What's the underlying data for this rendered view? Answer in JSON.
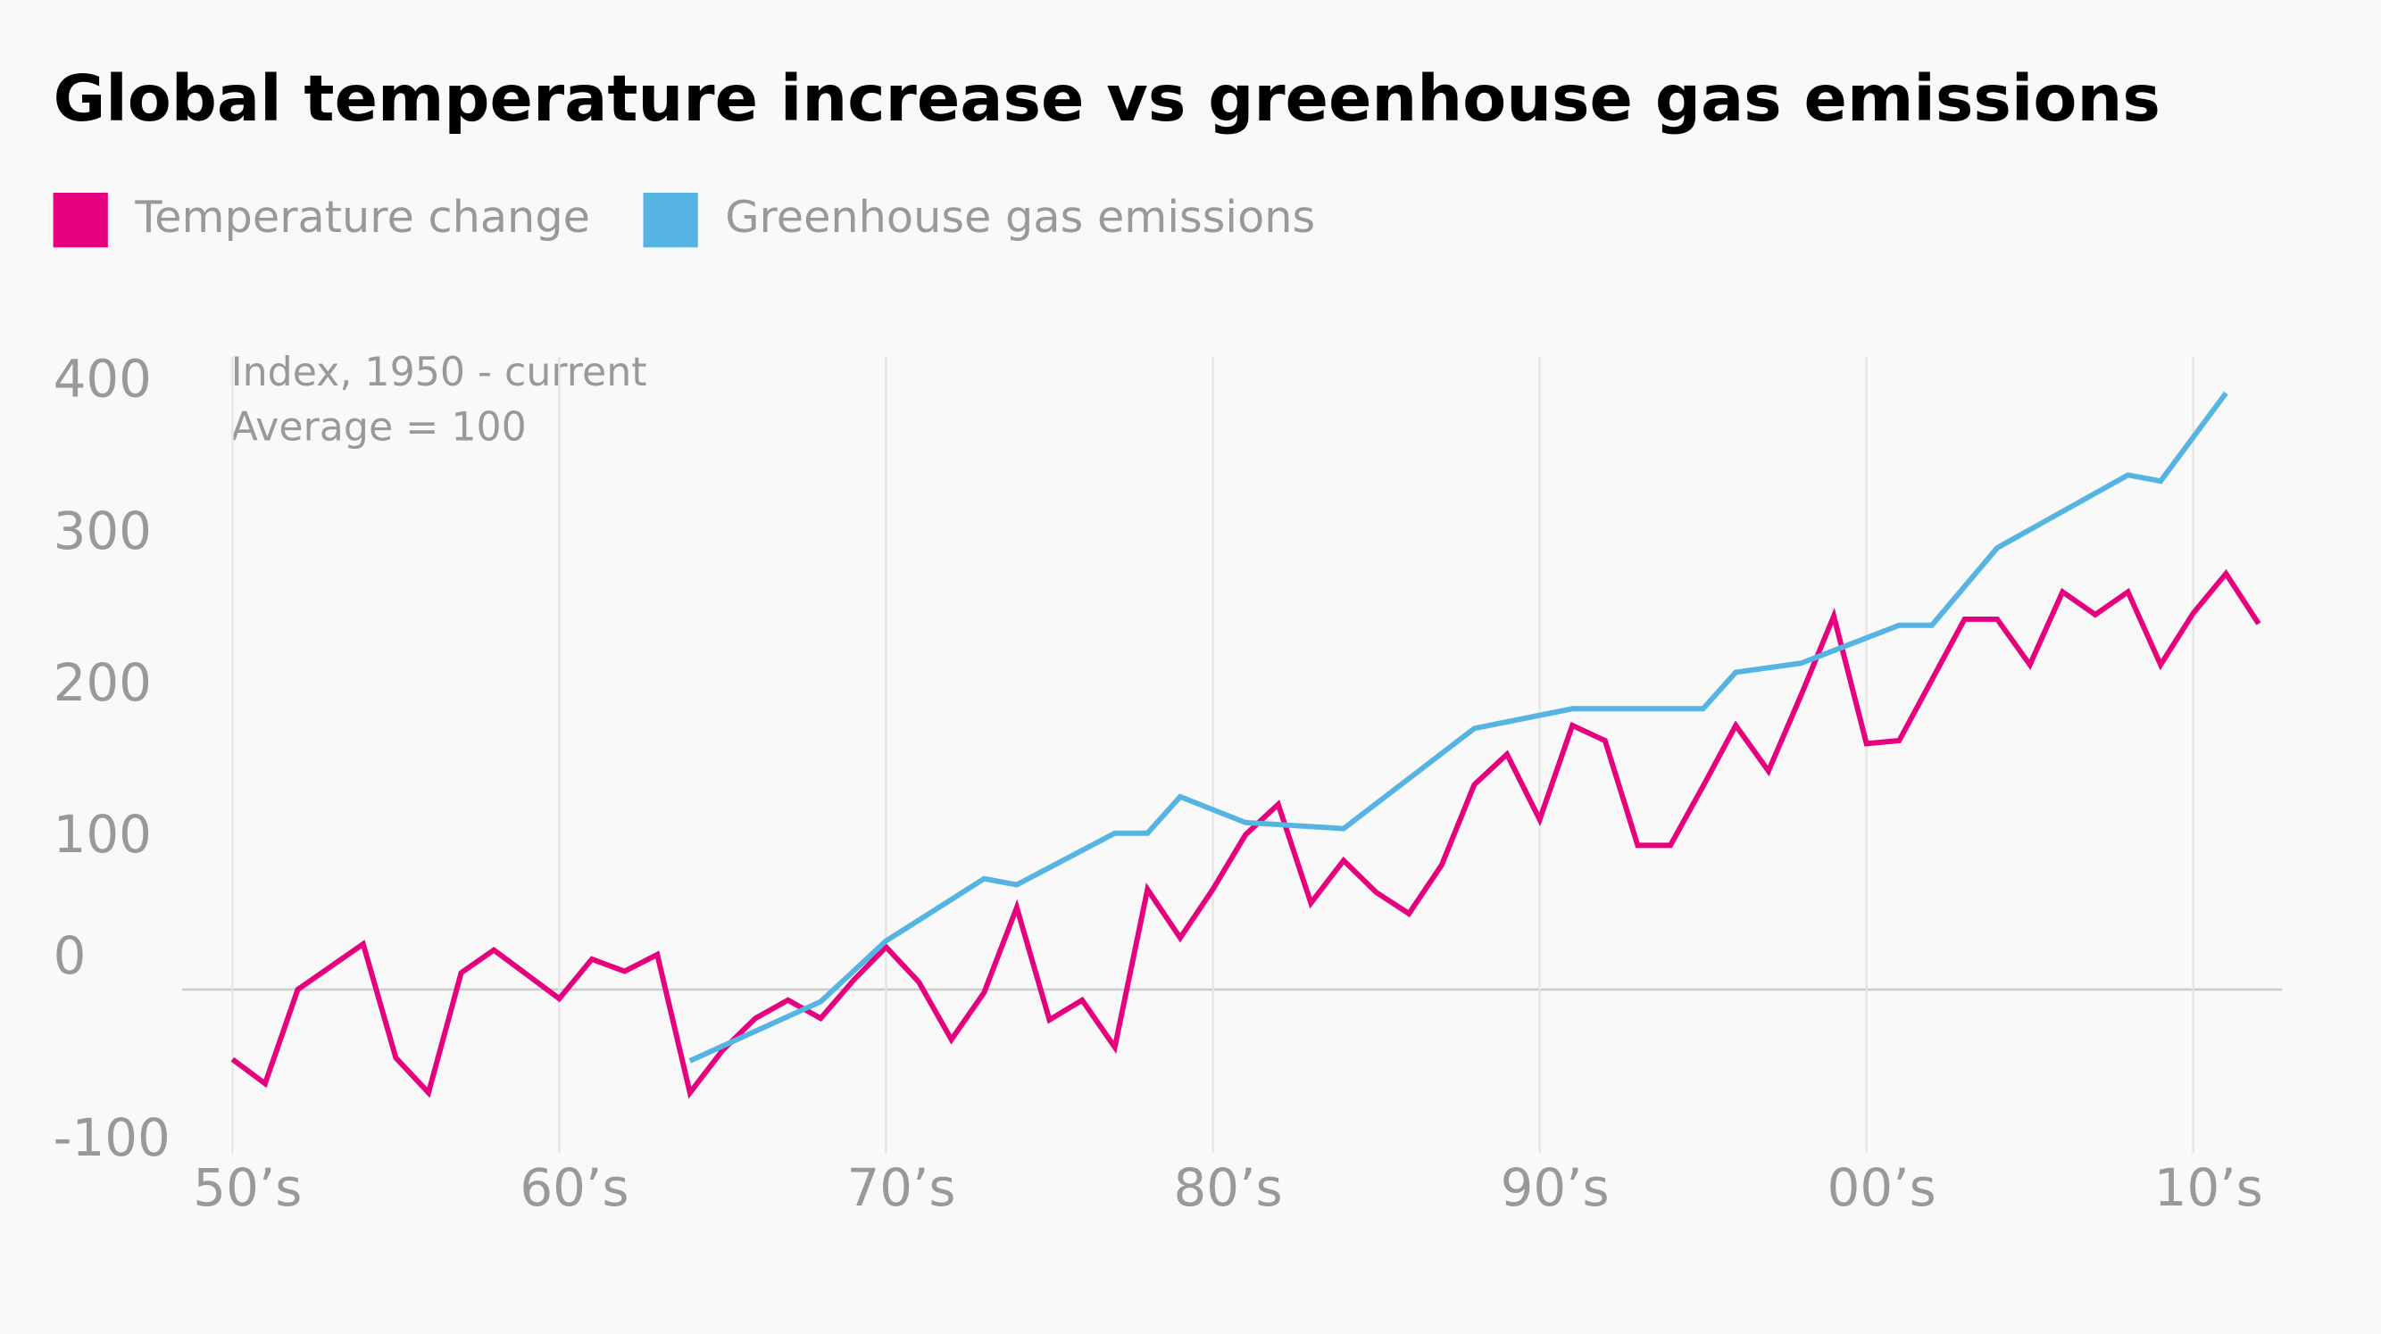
{
  "chart_data": {
    "type": "line",
    "title": "Global temperature increase vs greenhouse gas emissions",
    "annotations": [
      "Index, 1950 - current",
      "Average = 100"
    ],
    "xlim": [
      1949,
      2013
    ],
    "xticks": [
      {
        "value": 1950,
        "label": "50’s"
      },
      {
        "value": 1960,
        "label": "60’s"
      },
      {
        "value": 1970,
        "label": "70’s"
      },
      {
        "value": 1980,
        "label": "80’s"
      },
      {
        "value": 1990,
        "label": "90’s"
      },
      {
        "value": 2000,
        "label": "00’s"
      },
      {
        "value": 2010,
        "label": "10’s"
      }
    ],
    "ylim": [
      -100,
      400
    ],
    "yticks": [
      -100,
      0,
      100,
      200,
      300,
      400
    ],
    "grid": true,
    "legend": "top-left",
    "series": [
      {
        "name": "Temperature change",
        "color": "#e6007e",
        "x": [
          1950,
          1951,
          1952,
          1953,
          1954,
          1955,
          1956,
          1957,
          1958,
          1959,
          1960,
          1961,
          1962,
          1963,
          1964,
          1965,
          1966,
          1967,
          1968,
          1969,
          1970,
          1971,
          1972,
          1973,
          1974,
          1975,
          1976,
          1977,
          1978,
          1979,
          1980,
          1981,
          1982,
          1983,
          1984,
          1985,
          1986,
          1987,
          1988,
          1989,
          1990,
          1991,
          1992,
          1993,
          1994,
          1995,
          1996,
          1997,
          1998,
          1999,
          2000,
          2001,
          2002,
          2003,
          2004,
          2005,
          2006,
          2007,
          2008,
          2009,
          2010,
          2011,
          2012
        ],
        "values": [
          -46,
          -62,
          0,
          15,
          30,
          -45,
          -68,
          11,
          26,
          10,
          -6,
          20,
          12,
          23,
          -68,
          -40,
          -19,
          -7,
          -19,
          6,
          28,
          5,
          -33,
          -2,
          54,
          -20,
          -7,
          -38,
          66,
          34,
          66,
          102,
          122,
          57,
          85,
          64,
          50,
          82,
          135,
          155,
          112,
          174,
          164,
          95,
          95,
          134,
          174,
          144,
          194,
          246,
          162,
          164,
          204,
          244,
          244,
          214,
          262,
          247,
          262,
          214,
          248,
          274,
          241
        ]
      },
      {
        "name": "Greenhouse gas emissions",
        "color": "#56b4e3",
        "x": [
          1964,
          1968,
          1970,
          1973,
          1974,
          1977,
          1978,
          1979,
          1981,
          1984,
          1988,
          1991,
          1995,
          1996,
          1998,
          2001,
          2002,
          2004,
          2008,
          2009,
          2011
        ],
        "values": [
          -47,
          -8,
          32,
          73,
          69,
          103,
          103,
          127,
          110,
          106,
          172,
          185,
          185,
          209,
          215,
          240,
          240,
          291,
          339,
          335,
          393
        ]
      }
    ]
  }
}
